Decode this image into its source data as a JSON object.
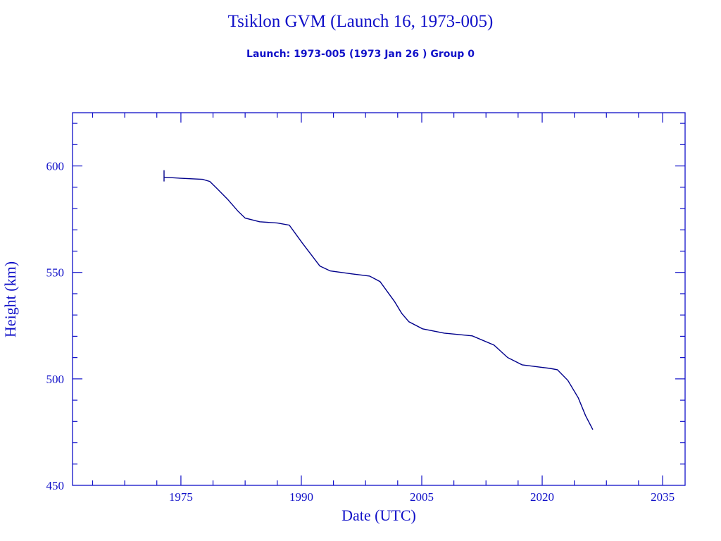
{
  "chart_data": {
    "type": "line",
    "title": "Tsiklon GVM (Launch 16, 1973-005)",
    "subtitle": "Launch: 1973-005  (1973 Jan 26 )  Group 0",
    "xlabel": "Date (UTC)",
    "ylabel": "Height (km)",
    "xlim": [
      1961.5,
      2037.8
    ],
    "ylim": [
      450,
      625
    ],
    "xticks": [
      1975,
      1990,
      2005,
      2020,
      2035
    ],
    "xtick_labels": [
      "1975",
      "1990",
      "2005",
      "2020",
      "2035"
    ],
    "yticks": [
      450,
      500,
      550,
      600
    ],
    "ytick_labels": [
      "450",
      "500",
      "550",
      "600"
    ],
    "grid": false,
    "colors": {
      "axes": "#1010c8",
      "line": "#00008b"
    },
    "series": [
      {
        "x": [
          1972.9,
          1975.0,
          1977.7,
          1978.6,
          1979.5,
          1980.8,
          1982.1,
          1983.0,
          1984.8,
          1987.0,
          1988.5,
          1990.1,
          1992.3,
          1993.6,
          1996.3,
          1998.5,
          1999.8,
          2001.6,
          2002.5,
          2003.4,
          2005.1,
          2007.8,
          2011.3,
          2014.0,
          2015.7,
          2017.5,
          2021.0,
          2021.9,
          2023.2,
          2024.5,
          2025.4,
          2026.3
        ],
        "y": [
          594.7,
          594.2,
          593.7,
          592.7,
          589.4,
          584.4,
          578.8,
          575.5,
          573.8,
          573.2,
          572.2,
          563.9,
          553.0,
          550.7,
          549.3,
          548.3,
          545.7,
          536.4,
          530.8,
          526.8,
          523.5,
          521.5,
          520.2,
          515.9,
          510.0,
          506.6,
          504.9,
          504.3,
          499.3,
          491.1,
          482.8,
          476.2
        ]
      }
    ],
    "start_marker": {
      "x": 1972.9,
      "y": 594.7
    }
  }
}
